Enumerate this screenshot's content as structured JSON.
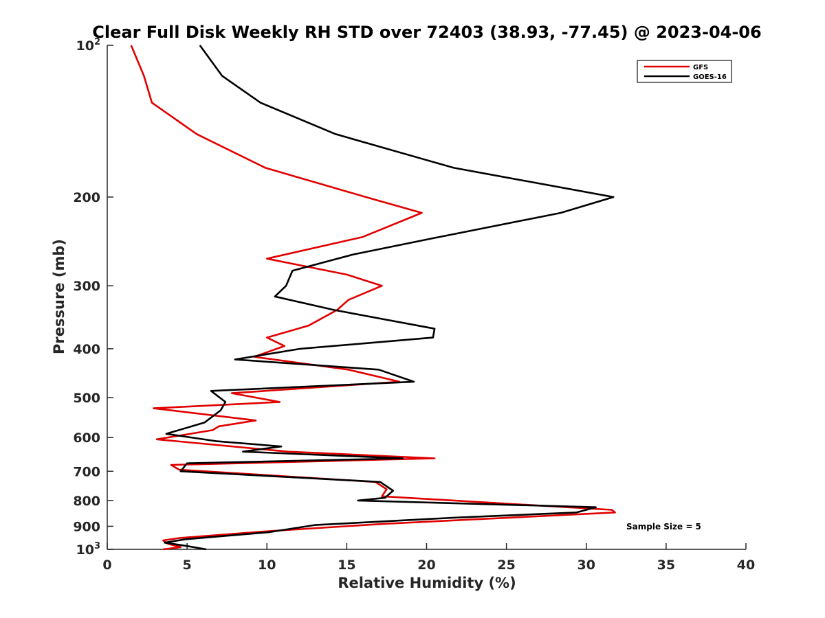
{
  "chart_data": {
    "type": "line",
    "title": "Clear Full Disk Weekly RH STD over 72403 (38.93, -77.45) @ 2023-04-06",
    "xlabel": "Relative Humidity (%)",
    "ylabel": "Pressure (mb)",
    "xlim": [
      0,
      40
    ],
    "ylim": [
      100,
      1000
    ],
    "y_scale": "log",
    "y_reversed": true,
    "x_ticks": [
      0,
      5,
      10,
      15,
      20,
      25,
      30,
      35,
      40
    ],
    "x_tick_labels": [
      "0",
      "5",
      "10",
      "15",
      "20",
      "25",
      "30",
      "35",
      "40"
    ],
    "y_ticks": [
      100,
      200,
      300,
      400,
      500,
      600,
      700,
      800,
      900,
      1000
    ],
    "y_tick_labels": [
      {
        "base": "10",
        "sup": "2"
      },
      {
        "base": "200",
        "sup": ""
      },
      {
        "base": "300",
        "sup": ""
      },
      {
        "base": "400",
        "sup": ""
      },
      {
        "base": "500",
        "sup": ""
      },
      {
        "base": "600",
        "sup": ""
      },
      {
        "base": "700",
        "sup": ""
      },
      {
        "base": "800",
        "sup": ""
      },
      {
        "base": "900",
        "sup": ""
      },
      {
        "base": "10",
        "sup": "3"
      }
    ],
    "grid": false,
    "legend_position": "top-right",
    "annotation": "Sample Size = 5",
    "series": [
      {
        "name": "GFS",
        "color": "#e00000",
        "points": [
          [
            1.5,
            100
          ],
          [
            2.3,
            115
          ],
          [
            2.8,
            130
          ],
          [
            5.6,
            150
          ],
          [
            9.9,
            175
          ],
          [
            16.2,
            200
          ],
          [
            19.7,
            215
          ],
          [
            16.0,
            240
          ],
          [
            10.0,
            265
          ],
          [
            15.0,
            285
          ],
          [
            17.2,
            300
          ],
          [
            15.1,
            320
          ],
          [
            14.4,
            335
          ],
          [
            12.6,
            360
          ],
          [
            10.0,
            380
          ],
          [
            11.1,
            395
          ],
          [
            9.2,
            415
          ],
          [
            15.1,
            440
          ],
          [
            18.3,
            465
          ],
          [
            7.8,
            490
          ],
          [
            10.8,
            510
          ],
          [
            2.9,
            525
          ],
          [
            9.3,
            555
          ],
          [
            7.0,
            570
          ],
          [
            6.6,
            580
          ],
          [
            3.1,
            605
          ],
          [
            11.3,
            640
          ],
          [
            20.5,
            660
          ],
          [
            4.0,
            680
          ],
          [
            4.5,
            695
          ],
          [
            16.8,
            735
          ],
          [
            17.5,
            760
          ],
          [
            17.2,
            785
          ],
          [
            31.6,
            835
          ],
          [
            31.8,
            845
          ],
          [
            17.3,
            890
          ],
          [
            10.2,
            920
          ],
          [
            4.5,
            950
          ],
          [
            3.5,
            960
          ],
          [
            3.8,
            975
          ],
          [
            4.6,
            990
          ],
          [
            3.5,
            1000
          ]
        ]
      },
      {
        "name": "GOES-16",
        "color": "#000000",
        "points": [
          [
            5.8,
            100
          ],
          [
            7.2,
            115
          ],
          [
            9.6,
            130
          ],
          [
            14.3,
            150
          ],
          [
            21.7,
            175
          ],
          [
            31.7,
            200
          ],
          [
            28.4,
            215
          ],
          [
            20.8,
            240
          ],
          [
            15.4,
            260
          ],
          [
            11.6,
            280
          ],
          [
            11.2,
            300
          ],
          [
            10.5,
            315
          ],
          [
            14.2,
            335
          ],
          [
            20.5,
            365
          ],
          [
            20.4,
            380
          ],
          [
            12.1,
            400
          ],
          [
            8.0,
            420
          ],
          [
            17.0,
            440
          ],
          [
            19.2,
            465
          ],
          [
            6.5,
            485
          ],
          [
            7.4,
            510
          ],
          [
            7.1,
            530
          ],
          [
            6.1,
            560
          ],
          [
            3.7,
            590
          ],
          [
            6.8,
            610
          ],
          [
            10.9,
            625
          ],
          [
            8.5,
            640
          ],
          [
            18.5,
            660
          ],
          [
            5.0,
            675
          ],
          [
            4.6,
            700
          ],
          [
            17.1,
            735
          ],
          [
            17.9,
            765
          ],
          [
            17.4,
            790
          ],
          [
            15.7,
            800
          ],
          [
            30.6,
            825
          ],
          [
            29.4,
            845
          ],
          [
            21.8,
            865
          ],
          [
            13.0,
            895
          ],
          [
            10.1,
            925
          ],
          [
            4.9,
            955
          ],
          [
            3.6,
            970
          ],
          [
            5.0,
            985
          ],
          [
            6.2,
            1000
          ]
        ]
      }
    ]
  }
}
